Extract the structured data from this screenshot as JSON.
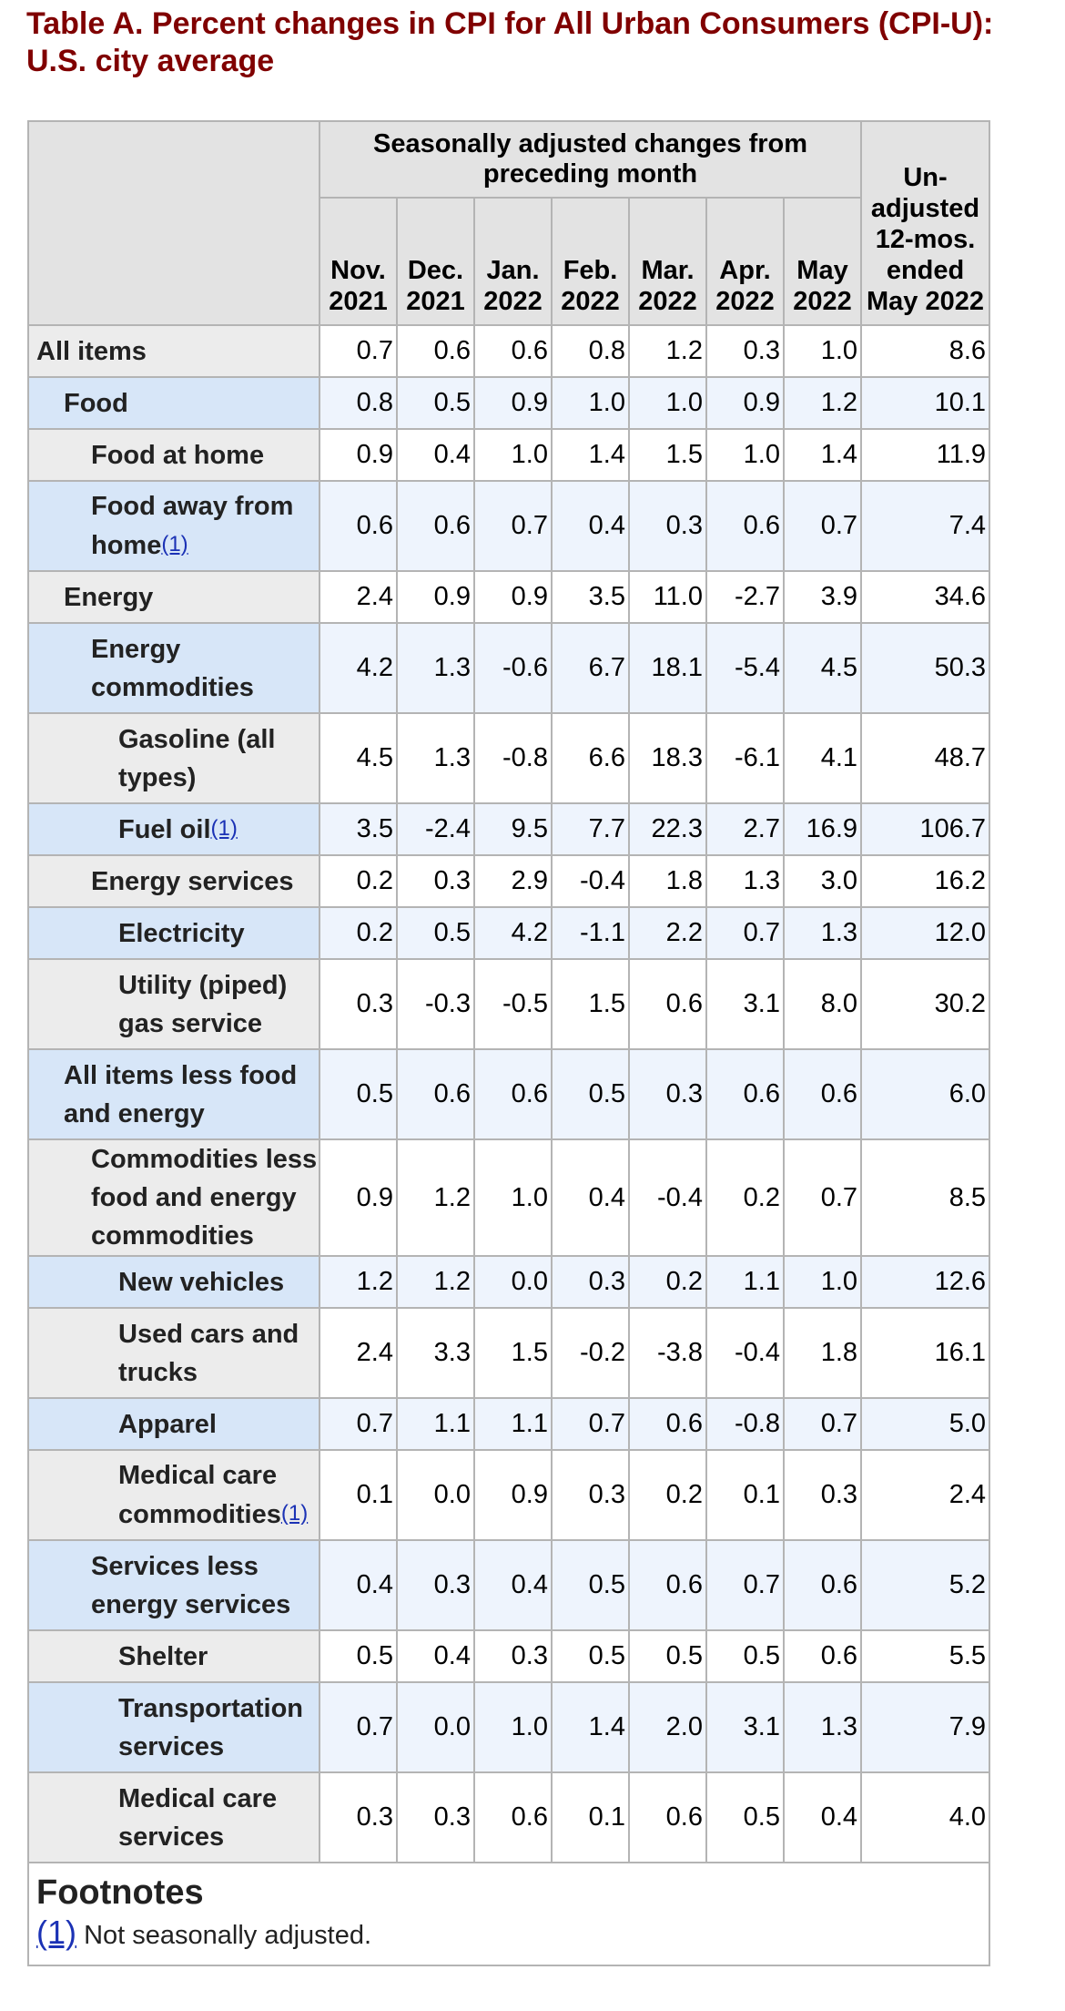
{
  "title": "Table A. Percent changes in CPI for All Urban Consumers (CPI-U): U.S. city average",
  "header": {
    "group_label": "Seasonally adjusted changes from preceding month",
    "months": [
      {
        "month": "Nov.",
        "year": "2021"
      },
      {
        "month": "Dec.",
        "year": "2021"
      },
      {
        "month": "Jan.",
        "year": "2022"
      },
      {
        "month": "Feb.",
        "year": "2022"
      },
      {
        "month": "Mar.",
        "year": "2022"
      },
      {
        "month": "Apr.",
        "year": "2022"
      },
      {
        "month": "May",
        "year": "2022"
      }
    ],
    "unadjusted_label": "Un- adjusted 12-mos. ended May 2022"
  },
  "rows": [
    {
      "label": "All items",
      "level": 0,
      "shade": "grey",
      "footnote": false,
      "values": [
        "0.7",
        "0.6",
        "0.6",
        "0.8",
        "1.2",
        "0.3",
        "1.0",
        "8.6"
      ]
    },
    {
      "label": "Food",
      "level": 1,
      "shade": "blue",
      "footnote": false,
      "values": [
        "0.8",
        "0.5",
        "0.9",
        "1.0",
        "1.0",
        "0.9",
        "1.2",
        "10.1"
      ]
    },
    {
      "label": "Food at home",
      "level": 2,
      "shade": "grey",
      "footnote": false,
      "values": [
        "0.9",
        "0.4",
        "1.0",
        "1.4",
        "1.5",
        "1.0",
        "1.4",
        "11.9"
      ]
    },
    {
      "label": "Food away from home",
      "level": 2,
      "shade": "blue",
      "footnote": true,
      "values": [
        "0.6",
        "0.6",
        "0.7",
        "0.4",
        "0.3",
        "0.6",
        "0.7",
        "7.4"
      ]
    },
    {
      "label": "Energy",
      "level": 1,
      "shade": "grey",
      "footnote": false,
      "values": [
        "2.4",
        "0.9",
        "0.9",
        "3.5",
        "11.0",
        "-2.7",
        "3.9",
        "34.6"
      ]
    },
    {
      "label": "Energy commodities",
      "level": 2,
      "shade": "blue",
      "footnote": false,
      "values": [
        "4.2",
        "1.3",
        "-0.6",
        "6.7",
        "18.1",
        "-5.4",
        "4.5",
        "50.3"
      ]
    },
    {
      "label": "Gasoline (all types)",
      "level": 3,
      "shade": "grey",
      "footnote": false,
      "values": [
        "4.5",
        "1.3",
        "-0.8",
        "6.6",
        "18.3",
        "-6.1",
        "4.1",
        "48.7"
      ]
    },
    {
      "label": "Fuel oil",
      "level": 3,
      "shade": "blue",
      "footnote": true,
      "values": [
        "3.5",
        "-2.4",
        "9.5",
        "7.7",
        "22.3",
        "2.7",
        "16.9",
        "106.7"
      ]
    },
    {
      "label": "Energy services",
      "level": 2,
      "shade": "grey",
      "footnote": false,
      "values": [
        "0.2",
        "0.3",
        "2.9",
        "-0.4",
        "1.8",
        "1.3",
        "3.0",
        "16.2"
      ]
    },
    {
      "label": "Electricity",
      "level": 3,
      "shade": "blue",
      "footnote": false,
      "values": [
        "0.2",
        "0.5",
        "4.2",
        "-1.1",
        "2.2",
        "0.7",
        "1.3",
        "12.0"
      ]
    },
    {
      "label": "Utility (piped) gas service",
      "level": 3,
      "shade": "grey",
      "footnote": false,
      "values": [
        "0.3",
        "-0.3",
        "-0.5",
        "1.5",
        "0.6",
        "3.1",
        "8.0",
        "30.2"
      ]
    },
    {
      "label": "All items less food and energy",
      "level": 1,
      "shade": "blue",
      "footnote": false,
      "values": [
        "0.5",
        "0.6",
        "0.6",
        "0.5",
        "0.3",
        "0.6",
        "0.6",
        "6.0"
      ]
    },
    {
      "label": "Commodities less food and energy commodities",
      "level": 2,
      "shade": "grey",
      "footnote": false,
      "values": [
        "0.9",
        "1.2",
        "1.0",
        "0.4",
        "-0.4",
        "0.2",
        "0.7",
        "8.5"
      ]
    },
    {
      "label": "New vehicles",
      "level": 3,
      "shade": "blue",
      "footnote": false,
      "values": [
        "1.2",
        "1.2",
        "0.0",
        "0.3",
        "0.2",
        "1.1",
        "1.0",
        "12.6"
      ]
    },
    {
      "label": "Used cars and trucks",
      "level": 3,
      "shade": "grey",
      "footnote": false,
      "values": [
        "2.4",
        "3.3",
        "1.5",
        "-0.2",
        "-3.8",
        "-0.4",
        "1.8",
        "16.1"
      ]
    },
    {
      "label": "Apparel",
      "level": 3,
      "shade": "blue",
      "footnote": false,
      "values": [
        "0.7",
        "1.1",
        "1.1",
        "0.7",
        "0.6",
        "-0.8",
        "0.7",
        "5.0"
      ]
    },
    {
      "label": "Medical care commodities",
      "level": 3,
      "shade": "grey",
      "footnote": true,
      "values": [
        "0.1",
        "0.0",
        "0.9",
        "0.3",
        "0.2",
        "0.1",
        "0.3",
        "2.4"
      ]
    },
    {
      "label": "Services less energy services",
      "level": 2,
      "shade": "blue",
      "footnote": false,
      "values": [
        "0.4",
        "0.3",
        "0.4",
        "0.5",
        "0.6",
        "0.7",
        "0.6",
        "5.2"
      ]
    },
    {
      "label": "Shelter",
      "level": 3,
      "shade": "grey",
      "footnote": false,
      "values": [
        "0.5",
        "0.4",
        "0.3",
        "0.5",
        "0.5",
        "0.5",
        "0.6",
        "5.5"
      ]
    },
    {
      "label": "Transportation services",
      "level": 3,
      "shade": "blue",
      "footnote": false,
      "values": [
        "0.7",
        "0.0",
        "1.0",
        "1.4",
        "2.0",
        "3.1",
        "1.3",
        "7.9"
      ]
    },
    {
      "label": "Medical care services",
      "level": 3,
      "shade": "grey",
      "footnote": false,
      "values": [
        "0.3",
        "0.3",
        "0.6",
        "0.1",
        "0.6",
        "0.5",
        "0.4",
        "4.0"
      ]
    }
  ],
  "footnote_ref": "(1)",
  "footnotes": {
    "heading": "Footnotes",
    "marker": "(1)",
    "text": "Not seasonally adjusted."
  },
  "colors": {
    "title": "#800000",
    "header_bg": "#e3e3e3",
    "row_grey_label_bg": "#ececec",
    "row_blue_label_bg": "#d7e6f8",
    "row_blue_value_bg": "#eef4fd",
    "link": "#1b32b5"
  }
}
